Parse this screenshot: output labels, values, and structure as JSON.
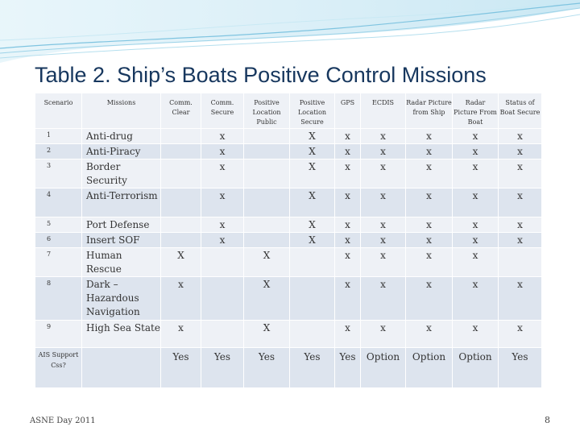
{
  "title": "Table 2.  Ship’s Boats Positive Control Missions",
  "headers": [
    "Scenario",
    "Missions",
    "Comm. Clear",
    "Comm. Secure",
    "Positive Location Public",
    "Positive Location Secure",
    "GPS",
    "ECDIS",
    "Radar Picture from Ship",
    "Radar Picture From Boat",
    "Status of Boat Secure"
  ],
  "rows": [
    {
      "num": "1",
      "mission": "Anti-drug",
      "cells": [
        "",
        "x",
        "",
        "X",
        "x",
        "x",
        "x",
        "x",
        "x"
      ]
    },
    {
      "num": "2",
      "mission": "Anti-Piracy",
      "cells": [
        "",
        "x",
        "",
        "X",
        "x",
        "x",
        "x",
        "x",
        "x"
      ]
    },
    {
      "num": "3",
      "mission": "Border Security",
      "cells": [
        "",
        "x",
        "",
        "X",
        "x",
        "x",
        "x",
        "x",
        "x"
      ]
    },
    {
      "num": "4",
      "mission": "Anti-Terrorism",
      "cells": [
        "",
        "x",
        "",
        "X",
        "x",
        "x",
        "x",
        "x",
        "x"
      ]
    },
    {
      "num": "5",
      "mission": "Port Defense",
      "cells": [
        "",
        "x",
        "",
        "X",
        "x",
        "x",
        "x",
        "x",
        "x"
      ]
    },
    {
      "num": "6",
      "mission": "Insert SOF",
      "cells": [
        "",
        "x",
        "",
        "X",
        "x",
        "x",
        "x",
        "x",
        "x"
      ]
    },
    {
      "num": "7",
      "mission": "Human Rescue",
      "cells": [
        "X",
        "",
        "X",
        "",
        "x",
        "x",
        "x",
        "x",
        ""
      ]
    },
    {
      "num": "8",
      "mission": "Dark – Hazardous Navigation",
      "cells": [
        "x",
        "",
        "X",
        "",
        "x",
        "x",
        "x",
        "x",
        "x"
      ]
    },
    {
      "num": "9",
      "mission": "High Sea State",
      "cells": [
        "x",
        "",
        "X",
        "",
        "x",
        "x",
        "x",
        "x",
        "x"
      ]
    }
  ],
  "ais_row": {
    "label": "AIS Support Css?",
    "mission": "",
    "cells": [
      "Yes",
      "Yes",
      "Yes",
      "Yes",
      "Yes",
      "Option",
      "Option",
      "Option",
      "Yes"
    ]
  },
  "footer": {
    "left": "ASNE Day 2011",
    "page": "8"
  },
  "colors": {
    "title": "#17375e",
    "row_light": "#eef1f6",
    "row_dark": "#dde4ee",
    "wave": "#7fc4e0"
  }
}
